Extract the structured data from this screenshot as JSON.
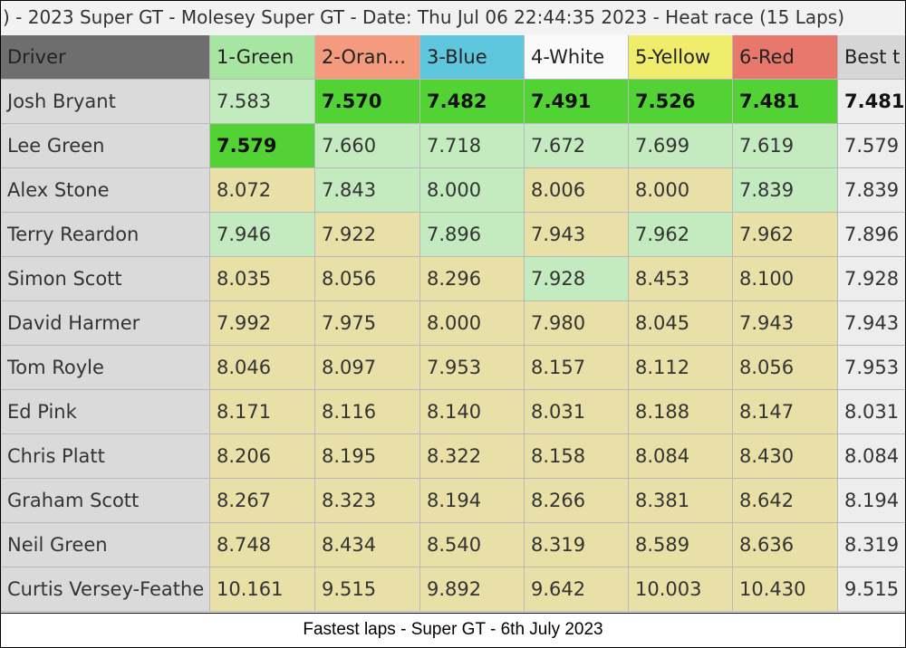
{
  "title_bar": ") - 2023 Super GT - Molesey Super GT - Date: Thu Jul 06 22:44:35 2023 - Heat race (15 Laps)",
  "table": {
    "headers": [
      "Driver",
      "1-Green",
      "2-Oran...",
      "3-Blue",
      "4-White",
      "5-Yellow",
      "6-Red",
      "Best t"
    ],
    "header_colors": [
      "#6e6e6e",
      "#a6e6a0",
      "#f39b7c",
      "#5ec7dd",
      "#fafafa",
      "#f0ec6c",
      "#e8786b",
      "#d6d6d6"
    ],
    "rows": [
      [
        "Josh Bryant",
        "7.583",
        "7.570",
        "7.482",
        "7.491",
        "7.526",
        "7.481",
        "7.481"
      ],
      [
        "Lee Green",
        "7.579",
        "7.660",
        "7.718",
        "7.672",
        "7.699",
        "7.619",
        "7.579"
      ],
      [
        "Alex Stone",
        "8.072",
        "7.843",
        "8.000",
        "8.006",
        "8.000",
        "7.839",
        "7.839"
      ],
      [
        "Terry Reardon",
        "7.946",
        "7.922",
        "7.896",
        "7.943",
        "7.962",
        "7.962",
        "7.896"
      ],
      [
        "Simon Scott",
        "8.035",
        "8.056",
        "8.296",
        "7.928",
        "8.453",
        "8.100",
        "7.928"
      ],
      [
        "David Harmer",
        "7.992",
        "7.975",
        "8.000",
        "7.980",
        "8.045",
        "7.943",
        "7.943"
      ],
      [
        "Tom Royle",
        "8.046",
        "8.097",
        "7.953",
        "8.157",
        "8.112",
        "8.056",
        "7.953"
      ],
      [
        "Ed Pink",
        "8.171",
        "8.116",
        "8.140",
        "8.031",
        "8.188",
        "8.147",
        "8.031"
      ],
      [
        "Chris Platt",
        "8.206",
        "8.195",
        "8.322",
        "8.158",
        "8.084",
        "8.430",
        "8.084"
      ],
      [
        "Graham Scott",
        "8.267",
        "8.323",
        "8.194",
        "8.266",
        "8.381",
        "8.642",
        "8.194"
      ],
      [
        "Neil Green",
        "8.748",
        "8.434",
        "8.540",
        "8.319",
        "8.589",
        "8.636",
        "8.319"
      ],
      [
        "Curtis Versey-Feathe",
        "10.161",
        "9.515",
        "9.892",
        "9.642",
        "10.003",
        "10.430",
        "9.515"
      ]
    ],
    "cell_colors": [
      [
        "#dadada",
        "#c3ebbf",
        "#52d235",
        "#52d235",
        "#52d235",
        "#52d235",
        "#52d235",
        "#ededed"
      ],
      [
        "#dadada",
        "#52d235",
        "#c3ebbf",
        "#c3ebbf",
        "#c3ebbf",
        "#c3ebbf",
        "#c3ebbf",
        "#ededed"
      ],
      [
        "#dadada",
        "#e8e0a7",
        "#c3ebbf",
        "#c3ebbf",
        "#e8e0a7",
        "#e8e0a7",
        "#c3ebbf",
        "#ededed"
      ],
      [
        "#dadada",
        "#c3ebbf",
        "#e8e0a7",
        "#c3ebbf",
        "#e8e0a7",
        "#c3ebbf",
        "#e8e0a7",
        "#ededed"
      ],
      [
        "#dadada",
        "#e8e0a7",
        "#e8e0a7",
        "#e8e0a7",
        "#c3ebbf",
        "#e8e0a7",
        "#e8e0a7",
        "#ededed"
      ],
      [
        "#dadada",
        "#e8e0a7",
        "#e8e0a7",
        "#e8e0a7",
        "#e8e0a7",
        "#e8e0a7",
        "#e8e0a7",
        "#ededed"
      ],
      [
        "#dadada",
        "#e8e0a7",
        "#e8e0a7",
        "#e8e0a7",
        "#e8e0a7",
        "#e8e0a7",
        "#e8e0a7",
        "#ededed"
      ],
      [
        "#dadada",
        "#e8e0a7",
        "#e8e0a7",
        "#e8e0a7",
        "#e8e0a7",
        "#e8e0a7",
        "#e8e0a7",
        "#ededed"
      ],
      [
        "#dadada",
        "#e8e0a7",
        "#e8e0a7",
        "#e8e0a7",
        "#e8e0a7",
        "#e8e0a7",
        "#e8e0a7",
        "#ededed"
      ],
      [
        "#dadada",
        "#e8e0a7",
        "#e8e0a7",
        "#e8e0a7",
        "#e8e0a7",
        "#e8e0a7",
        "#e8e0a7",
        "#ededed"
      ],
      [
        "#dadada",
        "#e8e0a7",
        "#e8e0a7",
        "#e8e0a7",
        "#e8e0a7",
        "#e8e0a7",
        "#e8e0a7",
        "#ededed"
      ],
      [
        "#dadada",
        "#e8e0a7",
        "#e8e0a7",
        "#e8e0a7",
        "#e8e0a7",
        "#e8e0a7",
        "#e8e0a7",
        "#ededed"
      ]
    ],
    "bold": [
      [
        false,
        false,
        true,
        true,
        true,
        true,
        true,
        true
      ],
      [
        false,
        true,
        false,
        false,
        false,
        false,
        false,
        false
      ]
    ]
  },
  "caption": "Fastest laps - Super GT - 6th July 2023"
}
